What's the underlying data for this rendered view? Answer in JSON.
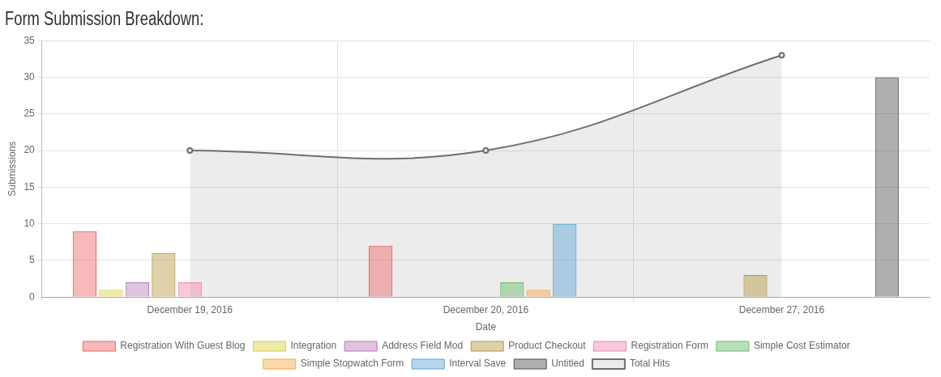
{
  "chart_data": {
    "type": "bar",
    "title": "Form Submission Breakdown:",
    "xlabel": "Date",
    "ylabel": "Submissions",
    "categories": [
      "December 19, 2016",
      "December 20, 2016",
      "December 27, 2016"
    ],
    "series": [
      {
        "name": "Registration With Guest Blog",
        "color": "#ed6363",
        "values": [
          9,
          7,
          0
        ]
      },
      {
        "name": "Integration",
        "color": "#dccf45",
        "values": [
          1,
          0,
          0
        ]
      },
      {
        "name": "Address Field Mod",
        "color": "#b87ab8",
        "values": [
          2,
          0,
          0
        ]
      },
      {
        "name": "Product Checkout",
        "color": "#b6973e",
        "values": [
          6,
          0,
          3
        ]
      },
      {
        "name": "Registration Form",
        "color": "#ef85b1",
        "values": [
          2,
          0,
          0
        ]
      },
      {
        "name": "Simple Cost Estimator",
        "color": "#66bb66",
        "values": [
          0,
          2,
          0
        ]
      },
      {
        "name": "Simple Stopwatch Form",
        "color": "#f9a83f",
        "values": [
          0,
          1,
          0
        ]
      },
      {
        "name": "Interval Save",
        "color": "#5da5da",
        "values": [
          0,
          10,
          0
        ]
      },
      {
        "name": "Untitled",
        "color": "#4d4d4d",
        "values": [
          0,
          0,
          30
        ]
      },
      {
        "name": "Total Hits",
        "type": "area",
        "color": "#6e6e6e",
        "values": [
          20,
          20,
          33
        ]
      }
    ],
    "ylim": [
      0,
      35
    ],
    "yticks": [
      0,
      5,
      10,
      15,
      20,
      25,
      30,
      35
    ],
    "grid": true,
    "legend": "bottom",
    "marker": "circle",
    "line_style": "solid"
  }
}
